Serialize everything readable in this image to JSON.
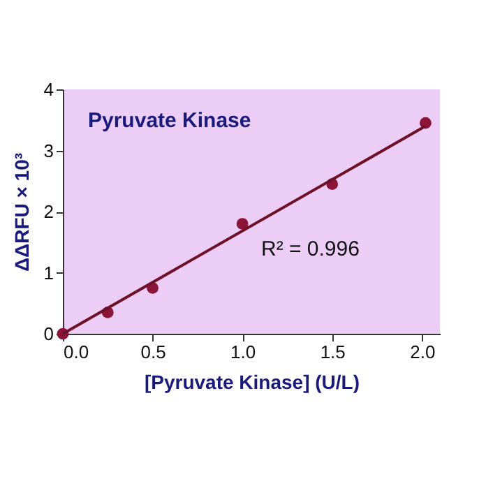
{
  "chart_data": {
    "type": "scatter",
    "title": "Pyruvate Kinase",
    "xlabel": "[Pyruvate Kinase] (U/L)",
    "ylabel": "ΔΔRFU × 10³",
    "annotations": [
      "R² = 0.996"
    ],
    "series": [
      {
        "color": "#8b1538",
        "x": [
          0,
          0.25,
          0.5,
          1.0,
          1.5,
          2.02
        ],
        "values": [
          0,
          0.35,
          0.75,
          1.8,
          2.45,
          3.45
        ]
      },
      {
        "type": "line",
        "marker": "none",
        "color": "#6e1028",
        "x": [
          0,
          2.02
        ],
        "values": [
          0,
          3.4
        ]
      }
    ],
    "xlim": [
      0,
      2.1
    ],
    "xticks": [
      {
        "value": 0,
        "label": "0.0"
      },
      {
        "value": 0.5,
        "label": "0.5"
      },
      {
        "value": 1,
        "label": "1.0"
      },
      {
        "value": 1.5,
        "label": "1.5"
      },
      {
        "value": 2,
        "label": "2.0"
      }
    ],
    "ylim": [
      0,
      4
    ],
    "yticks": [
      0,
      1,
      2,
      3,
      4
    ],
    "marker": "circle",
    "grid": false
  }
}
